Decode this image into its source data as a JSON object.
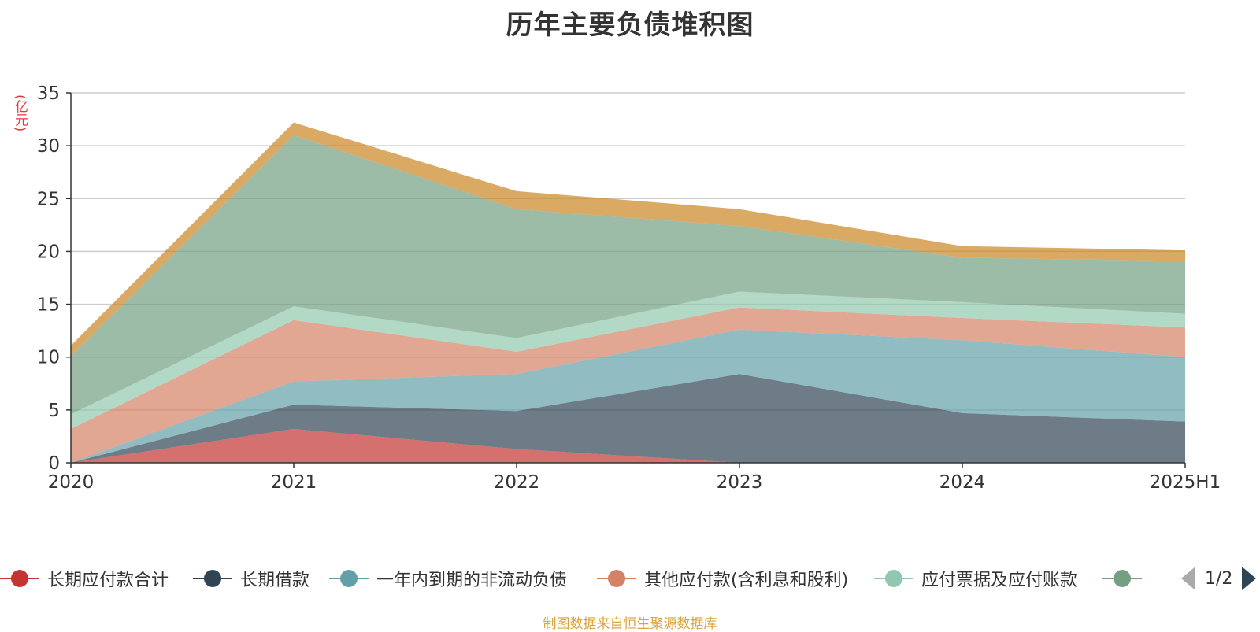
{
  "title": "历年主要负债堆积图",
  "source": "制图数据来自恒生聚源数据库",
  "pager": "1/2",
  "chart_data": {
    "type": "area",
    "stacked": true,
    "title": "历年主要负债堆积图",
    "ylabel": "(亿元)",
    "xlabel": "",
    "ylim": [
      0,
      35
    ],
    "yticks": [
      0,
      5,
      10,
      15,
      20,
      25,
      30,
      35
    ],
    "grid": true,
    "legend_position": "bottom",
    "categories": [
      "2020",
      "2021",
      "2022",
      "2023",
      "2024",
      "2025H1"
    ],
    "series": [
      {
        "name": "长期应付款合计",
        "color": "#c23531",
        "values": [
          0,
          3.2,
          1.3,
          0,
          0,
          0
        ]
      },
      {
        "name": "长期借款",
        "color": "#2f4554",
        "values": [
          0,
          2.3,
          3.6,
          8.4,
          4.7,
          3.9
        ]
      },
      {
        "name": "一年内到期的非流动负债",
        "color": "#61a0a8",
        "values": [
          0,
          2.2,
          3.5,
          4.2,
          6.9,
          6.1
        ]
      },
      {
        "name": "其他应付款(含利息和股利)",
        "color": "#d48265",
        "values": [
          3.2,
          5.8,
          2.1,
          2.1,
          2.1,
          2.8
        ]
      },
      {
        "name": "应付票据及应付账款",
        "color": "#91c7ae",
        "values": [
          1.4,
          1.3,
          1.3,
          1.5,
          1.5,
          1.3
        ]
      },
      {
        "name": "",
        "color": "#749f83",
        "values": [
          5.5,
          16.2,
          12.2,
          6.2,
          4.2,
          5.0
        ]
      },
      {
        "name": "",
        "color": "#ca8622",
        "values": [
          1.0,
          1.2,
          1.7,
          1.6,
          1.1,
          1.0
        ]
      }
    ]
  }
}
